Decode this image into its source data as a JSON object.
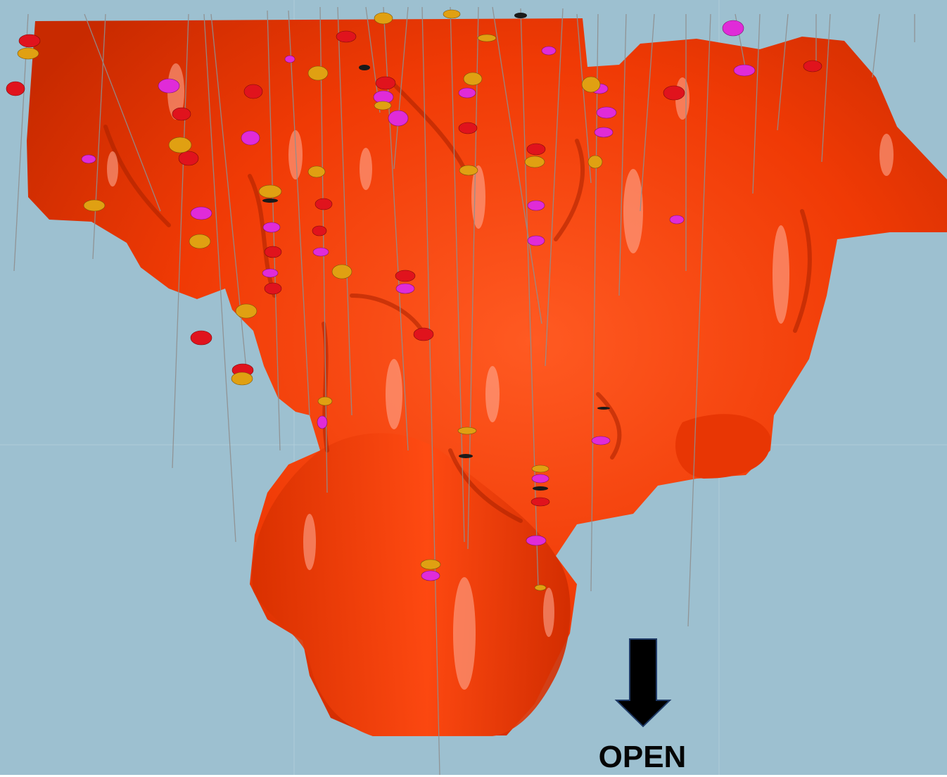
{
  "annotation": {
    "label": "OPEN",
    "arrow_icon": "arrow-down-icon",
    "arrow_color": "#000000",
    "arrow_outline": "#1f3a66"
  },
  "colors": {
    "background": "#9dc0d0",
    "orebody": "#f23a05",
    "orebody_highlight": "#ff8a66",
    "orebody_shadow": "#b82400",
    "drillhole_trace": "#8a8a8a",
    "assay_red": "#e0131d",
    "assay_magenta": "#e02bd8",
    "assay_amber": "#e0a012"
  }
}
